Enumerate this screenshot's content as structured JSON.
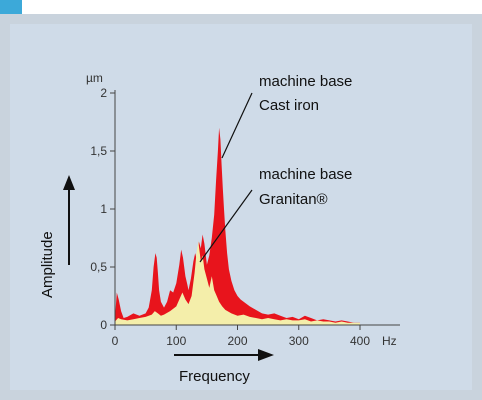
{
  "colors": {
    "frame": "#c9d3dd",
    "panel": "#cfdbe8",
    "cast_iron": "#e8141c",
    "granitan": "#f4eeaa",
    "accent_bar": "#3ca9d9"
  },
  "chart_data": {
    "type": "area",
    "title": "",
    "xlabel": "Frequency",
    "ylabel": "Amplitude",
    "x_unit": "Hz",
    "y_unit": "µm",
    "xlim": [
      0,
      420
    ],
    "ylim": [
      0,
      2.1
    ],
    "x_ticks": [
      "0",
      "100",
      "200",
      "300",
      "400"
    ],
    "y_ticks": [
      "0",
      "0,5",
      "1",
      "1,5",
      "2"
    ],
    "grid": false,
    "series": [
      {
        "name": "machine base Cast iron",
        "color": "#e8141c",
        "x": [
          0,
          3,
          6,
          10,
          14,
          20,
          30,
          40,
          50,
          55,
          60,
          63,
          66,
          68,
          70,
          72,
          75,
          80,
          85,
          90,
          95,
          100,
          105,
          108,
          111,
          113,
          115,
          118,
          120,
          124,
          128,
          131,
          134,
          137,
          140,
          143,
          146,
          150,
          154,
          158,
          162,
          165,
          168,
          170,
          172,
          174,
          176,
          178,
          180,
          183,
          186,
          190,
          195,
          200,
          205,
          210,
          220,
          230,
          240,
          250,
          260,
          270,
          280,
          290,
          300,
          310,
          320,
          330,
          340,
          350,
          360,
          370,
          380,
          390,
          400
        ],
        "y": [
          0.06,
          0.28,
          0.22,
          0.12,
          0.06,
          0.07,
          0.1,
          0.08,
          0.1,
          0.15,
          0.3,
          0.5,
          0.62,
          0.58,
          0.45,
          0.3,
          0.2,
          0.15,
          0.2,
          0.3,
          0.28,
          0.36,
          0.52,
          0.65,
          0.58,
          0.5,
          0.42,
          0.35,
          0.3,
          0.4,
          0.55,
          0.62,
          0.55,
          0.72,
          0.66,
          0.78,
          0.7,
          0.52,
          0.6,
          0.75,
          0.95,
          1.25,
          1.5,
          1.7,
          1.6,
          1.38,
          1.18,
          1.0,
          0.82,
          0.62,
          0.48,
          0.38,
          0.3,
          0.25,
          0.22,
          0.2,
          0.16,
          0.13,
          0.1,
          0.09,
          0.1,
          0.08,
          0.06,
          0.07,
          0.05,
          0.08,
          0.06,
          0.04,
          0.05,
          0.04,
          0.03,
          0.04,
          0.03,
          0.02,
          0.02
        ]
      },
      {
        "name": "machine base Granitan®",
        "color": "#f4eeaa",
        "x": [
          0,
          5,
          10,
          20,
          30,
          40,
          50,
          60,
          65,
          70,
          75,
          80,
          90,
          100,
          105,
          110,
          115,
          120,
          125,
          130,
          133,
          136,
          140,
          143,
          146,
          150,
          154,
          158,
          162,
          166,
          170,
          175,
          180,
          190,
          200,
          210,
          220,
          230,
          240,
          250,
          260,
          270,
          280,
          290,
          300,
          310,
          320,
          330,
          340,
          350,
          360,
          370,
          380,
          390,
          400
        ],
        "y": [
          0.03,
          0.06,
          0.05,
          0.04,
          0.05,
          0.06,
          0.07,
          0.09,
          0.12,
          0.1,
          0.08,
          0.09,
          0.12,
          0.16,
          0.22,
          0.28,
          0.22,
          0.18,
          0.25,
          0.45,
          0.62,
          0.72,
          0.55,
          0.6,
          0.48,
          0.4,
          0.32,
          0.42,
          0.3,
          0.25,
          0.2,
          0.16,
          0.13,
          0.1,
          0.08,
          0.09,
          0.07,
          0.06,
          0.05,
          0.06,
          0.05,
          0.04,
          0.05,
          0.04,
          0.04,
          0.05,
          0.03,
          0.04,
          0.03,
          0.03,
          0.02,
          0.03,
          0.02,
          0.02,
          0.02
        ]
      }
    ],
    "annotations": [
      {
        "line1": "machine base",
        "line2": "Cast iron"
      },
      {
        "line1": "machine base",
        "line2": "Granitan®"
      }
    ]
  }
}
